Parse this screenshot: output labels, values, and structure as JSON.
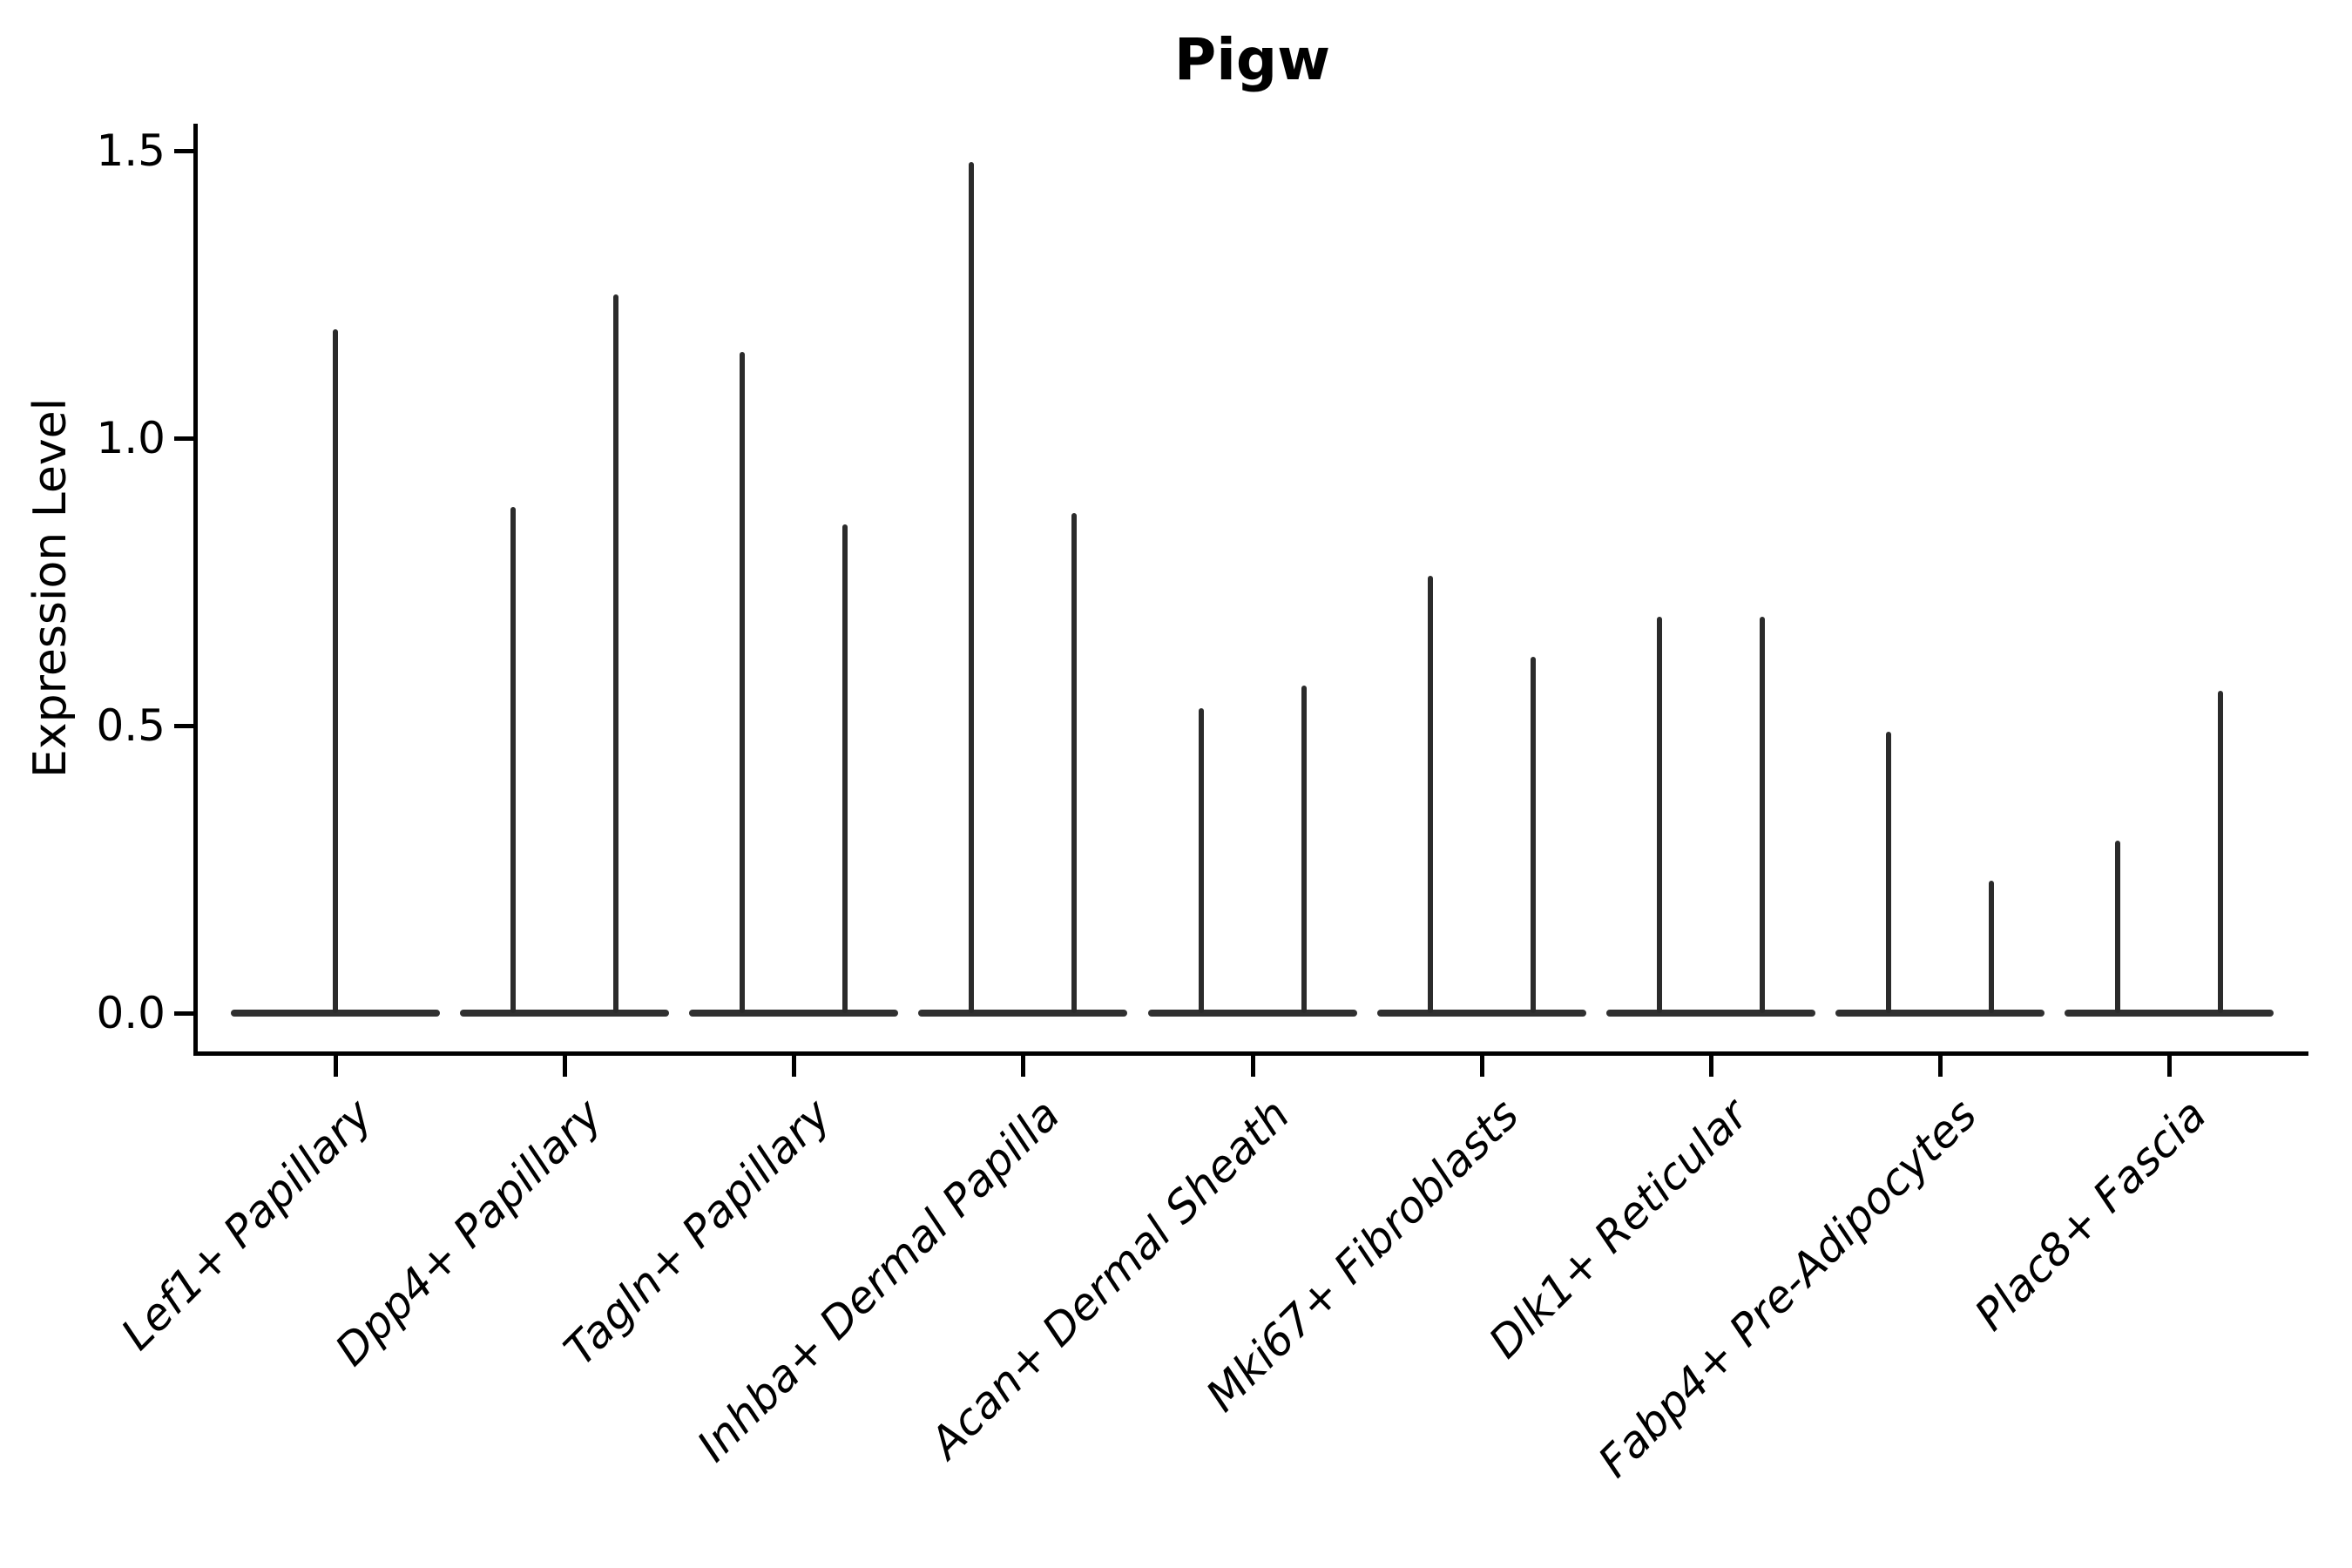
{
  "title": "Pigw",
  "ylabel": "Expression Level",
  "chart_data": {
    "type": "violin",
    "title": "Pigw",
    "xlabel": "",
    "ylabel": "Expression Level",
    "ylim": [
      -0.07,
      1.55
    ],
    "yticks": [
      0.0,
      0.5,
      1.0,
      1.5
    ],
    "ytick_labels": [
      "0.0",
      "0.5",
      "1.0",
      "1.5"
    ],
    "grid": false,
    "legend": "none",
    "description": "Ultra-thin split violin plot of gene expression; each category shows two needle-like violins (flat base at 0 with a single tall density spike); the first category has one centered violin.",
    "categories": [
      "Lef1+ Papillary",
      "Dpp4+ Papillary",
      "Tagln+ Papillary",
      "Inhba+ Dermal Papilla",
      "Acan+ Dermal Sheath",
      "Mki67+ Fibroblasts",
      "Dlk1+ Reticular",
      "Fabp4+ Pre-Adipocytes",
      "Plac8+ Fascia"
    ],
    "violins": [
      {
        "category": "Lef1+ Papillary",
        "spike_maxima": [
          1.19
        ]
      },
      {
        "category": "Dpp4+ Papillary",
        "spike_maxima": [
          0.88,
          1.25
        ]
      },
      {
        "category": "Tagln+ Papillary",
        "spike_maxima": [
          1.15,
          0.85
        ]
      },
      {
        "category": "Inhba+ Dermal Papilla",
        "spike_maxima": [
          1.48,
          0.87
        ]
      },
      {
        "category": "Acan+ Dermal Sheath",
        "spike_maxima": [
          0.53,
          0.57
        ]
      },
      {
        "category": "Mki67+ Fibroblasts",
        "spike_maxima": [
          0.76,
          0.62
        ]
      },
      {
        "category": "Dlk1+ Reticular",
        "spike_maxima": [
          0.69,
          0.69
        ]
      },
      {
        "category": "Fabp4+ Pre-Adipocytes",
        "spike_maxima": [
          0.49,
          0.23
        ]
      },
      {
        "category": "Plac8+ Fascia",
        "spike_maxima": [
          0.3,
          0.56
        ]
      }
    ],
    "baseline_value": 0.0,
    "colors": {
      "violin_line": "#2b2b2b",
      "baseline": "#303030",
      "axis": "#000000",
      "text": "#000000",
      "background": "#ffffff"
    }
  }
}
